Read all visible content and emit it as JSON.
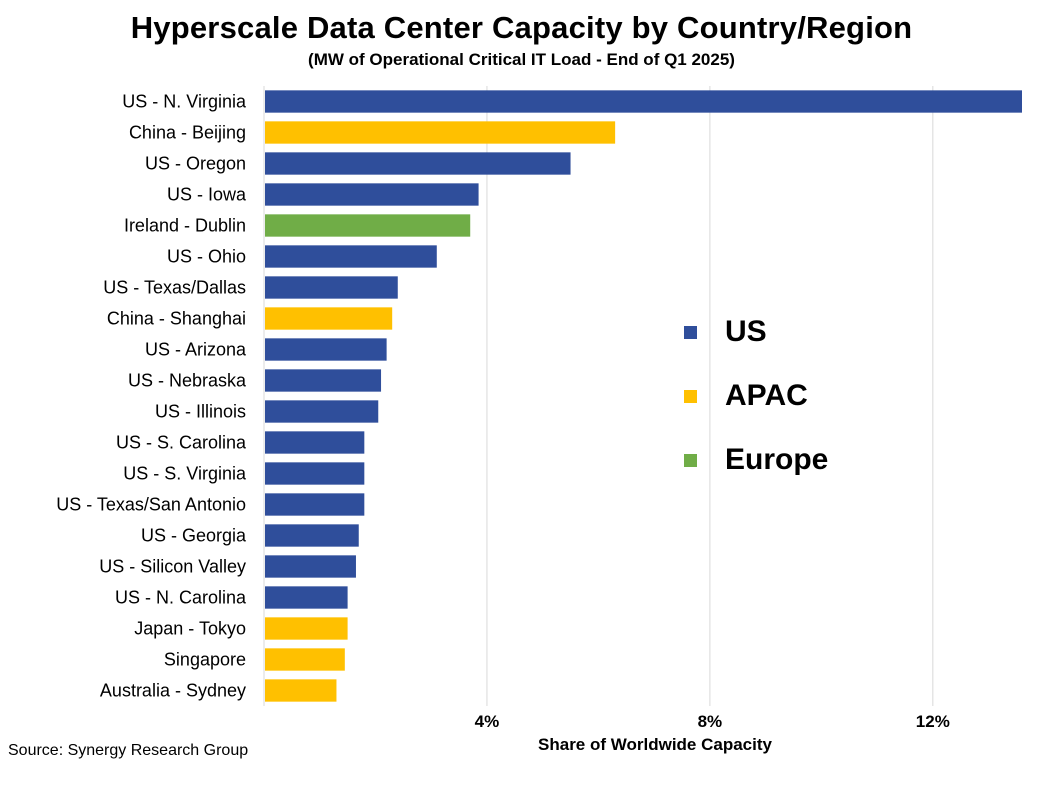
{
  "title": "Hyperscale Data Center Capacity by Country/Region",
  "subtitle": "(MW of Operational Critical IT Load - End of Q1 2025)",
  "source": "Source: Synergy Research Group",
  "colors": {
    "US": "#2F4E9B",
    "APAC": "#FFC000",
    "Europe": "#70AD47",
    "grid": "#d9d9d9"
  },
  "legend": [
    {
      "label": "US",
      "color": "#2F4E9B"
    },
    {
      "label": "APAC",
      "color": "#FFC000"
    },
    {
      "label": "Europe",
      "color": "#70AD47"
    }
  ],
  "chart_data": {
    "type": "bar",
    "orientation": "horizontal",
    "title": "Hyperscale Data Center Capacity by Country/Region",
    "subtitle": "(MW of Operational Critical IT Load - End of Q1 2025)",
    "xlabel": "Share of Worldwide Capacity",
    "xlim": [
      0,
      13.6
    ],
    "xticks": [
      4,
      8,
      12
    ],
    "xtick_labels": [
      "4%",
      "8%",
      "12%"
    ],
    "grid": true,
    "legend_position": "center-right",
    "categories": [
      "US - N. Virginia",
      "China - Beijing",
      "US - Oregon",
      "US - Iowa",
      "Ireland - Dublin",
      "US - Ohio",
      "US - Texas/Dallas",
      "China - Shanghai",
      "US - Arizona",
      "US - Nebraska",
      "US - Illinois",
      "US - S. Carolina",
      "US - S. Virginia",
      "US - Texas/San Antonio",
      "US - Georgia",
      "US - Silicon Valley",
      "US - N. Carolina",
      "Japan - Tokyo",
      "Singapore",
      "Australia - Sydney"
    ],
    "values": [
      13.6,
      6.3,
      5.5,
      3.85,
      3.7,
      3.1,
      2.4,
      2.3,
      2.2,
      2.1,
      2.05,
      1.8,
      1.8,
      1.8,
      1.7,
      1.65,
      1.5,
      1.5,
      1.45,
      1.3
    ],
    "regions": [
      "US",
      "APAC",
      "US",
      "US",
      "Europe",
      "US",
      "US",
      "APAC",
      "US",
      "US",
      "US",
      "US",
      "US",
      "US",
      "US",
      "US",
      "US",
      "APAC",
      "APAC",
      "APAC"
    ]
  }
}
